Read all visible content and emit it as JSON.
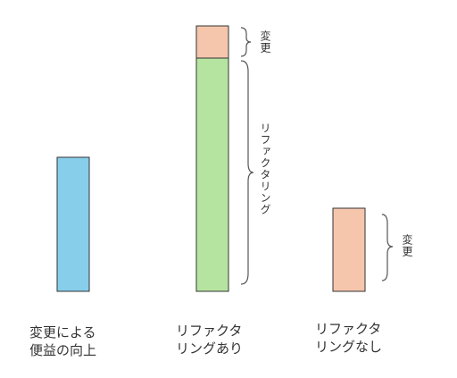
{
  "colors": {
    "benefit": "#87CEEB",
    "change": "#F5C6AC",
    "refactoring": "#B5E4A0",
    "outline": "#333333"
  },
  "diagram": {
    "bars": [
      {
        "id": "benefit",
        "label_line1": "変更による",
        "label_line2": "便益の向上"
      },
      {
        "id": "with-refactoring",
        "label_line1": "リファクタ",
        "label_line2": "リングあり",
        "segments": [
          {
            "name": "変更"
          },
          {
            "name": "リファクタリング"
          }
        ]
      },
      {
        "id": "without-refactoring",
        "label_line1": "リファクタ",
        "label_line2": "リングなし",
        "segments": [
          {
            "name": "変更"
          }
        ]
      }
    ]
  }
}
